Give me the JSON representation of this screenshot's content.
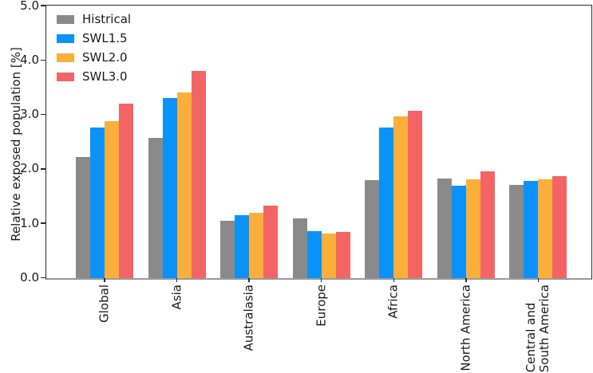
{
  "chart_data": {
    "type": "bar",
    "title": "",
    "xlabel": "",
    "ylabel": "Relative exposed population [%]",
    "ylim": [
      0.0,
      5.0
    ],
    "yticks": [
      "0.0",
      "1.0",
      "2.0",
      "3.0",
      "4.0",
      "5.0"
    ],
    "grid": false,
    "legend_position": "upper left",
    "categories": [
      "Global",
      "Asia",
      "Australasia",
      "Europe",
      "Africa",
      "North America",
      "Central and\nSouth America"
    ],
    "series": [
      {
        "name": "Histrical",
        "color": "#8a8a8a",
        "values": [
          2.23,
          2.58,
          1.05,
          1.1,
          1.8,
          1.83,
          1.72
        ]
      },
      {
        "name": "SWL1.5",
        "color": "#0b92f8",
        "values": [
          2.77,
          3.31,
          1.16,
          0.86,
          2.77,
          1.7,
          1.78
        ]
      },
      {
        "name": "SWL2.0",
        "color": "#fcae3b",
        "values": [
          2.89,
          3.41,
          1.2,
          0.82,
          2.97,
          1.81,
          1.81
        ]
      },
      {
        "name": "SWL3.0",
        "color": "#f36565",
        "values": [
          3.2,
          3.81,
          1.33,
          0.85,
          3.07,
          1.96,
          1.87
        ]
      }
    ]
  }
}
